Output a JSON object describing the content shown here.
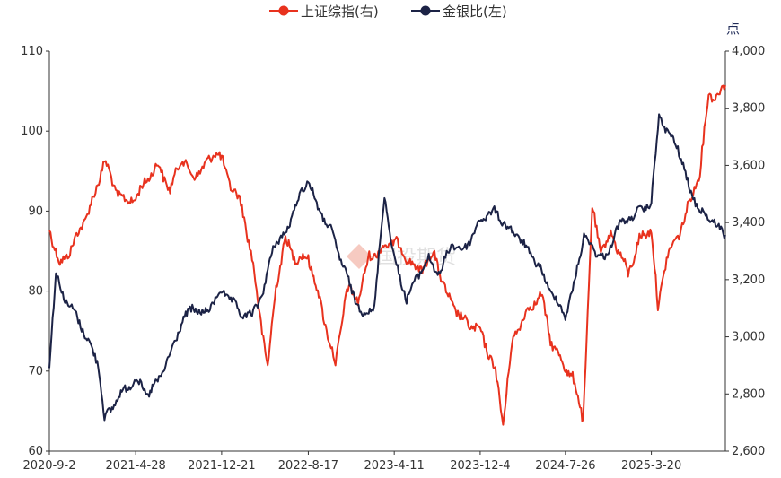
{
  "chart_data": {
    "type": "line",
    "legend": [
      {
        "label": "上证综指(右)",
        "color": "#e8321e"
      },
      {
        "label": "金银比(左)",
        "color": "#1c2346"
      }
    ],
    "legend_position": "top-center",
    "right_unit": "点",
    "watermark": "国投期货",
    "x_ticks": [
      "2020-9-2",
      "2021-4-28",
      "2021-12-21",
      "2022-8-17",
      "2023-4-11",
      "2023-12-4",
      "2024-7-26",
      "2025-3-20"
    ],
    "y_left": {
      "min": 60,
      "max": 110,
      "ticks": [
        60,
        70,
        80,
        90,
        100,
        110
      ]
    },
    "y_right": {
      "min": 2600,
      "max": 4000,
      "ticks": [
        "2,600",
        "2,800",
        "3,000",
        "3,200",
        "3,400",
        "3,600",
        "3,800",
        "4,000"
      ],
      "tick_values": [
        2600,
        2800,
        3000,
        3200,
        3400,
        3600,
        3800,
        4000
      ]
    },
    "grid": false,
    "x_range": [
      "2020-09-02",
      "2025-10-10"
    ],
    "series": [
      {
        "name": "上证综指(右)",
        "axis": "right",
        "color": "#e8321e",
        "points": [
          [
            "2020-09-02",
            3380
          ],
          [
            "2020-10-01",
            3250
          ],
          [
            "2020-11-01",
            3310
          ],
          [
            "2020-12-01",
            3390
          ],
          [
            "2021-01-01",
            3480
          ],
          [
            "2021-02-01",
            3620
          ],
          [
            "2021-03-01",
            3520
          ],
          [
            "2021-04-01",
            3470
          ],
          [
            "2021-05-01",
            3490
          ],
          [
            "2021-06-01",
            3560
          ],
          [
            "2021-07-01",
            3600
          ],
          [
            "2021-08-01",
            3510
          ],
          [
            "2021-09-01",
            3630
          ],
          [
            "2021-10-01",
            3560
          ],
          [
            "2021-11-01",
            3590
          ],
          [
            "2021-12-01",
            3650
          ],
          [
            "2021-12-21",
            3620
          ],
          [
            "2022-01-15",
            3530
          ],
          [
            "2022-02-15",
            3460
          ],
          [
            "2022-03-15",
            3270
          ],
          [
            "2022-04-27",
            2890
          ],
          [
            "2022-05-20",
            3180
          ],
          [
            "2022-06-15",
            3340
          ],
          [
            "2022-07-15",
            3270
          ],
          [
            "2022-08-17",
            3280
          ],
          [
            "2022-09-15",
            3140
          ],
          [
            "2022-10-31",
            2900
          ],
          [
            "2022-12-01",
            3170
          ],
          [
            "2023-01-01",
            3130
          ],
          [
            "2023-02-01",
            3280
          ],
          [
            "2023-03-01",
            3300
          ],
          [
            "2023-04-11",
            3340
          ],
          [
            "2023-05-15",
            3280
          ],
          [
            "2023-06-15",
            3230
          ],
          [
            "2023-07-31",
            3290
          ],
          [
            "2023-09-01",
            3150
          ],
          [
            "2023-10-15",
            3060
          ],
          [
            "2023-12-04",
            3020
          ],
          [
            "2024-01-15",
            2880
          ],
          [
            "2024-02-05",
            2700
          ],
          [
            "2024-03-01",
            2980
          ],
          [
            "2024-04-01",
            3070
          ],
          [
            "2024-05-20",
            3150
          ],
          [
            "2024-06-15",
            2990
          ],
          [
            "2024-07-26",
            2890
          ],
          [
            "2024-08-15",
            2860
          ],
          [
            "2024-09-13",
            2710
          ],
          [
            "2024-10-08",
            3450
          ],
          [
            "2024-11-01",
            3300
          ],
          [
            "2024-12-01",
            3360
          ],
          [
            "2025-01-15",
            3220
          ],
          [
            "2025-02-15",
            3340
          ],
          [
            "2025-03-20",
            3380
          ],
          [
            "2025-04-07",
            3100
          ],
          [
            "2025-05-01",
            3280
          ],
          [
            "2025-06-01",
            3350
          ],
          [
            "2025-07-01",
            3460
          ],
          [
            "2025-08-01",
            3580
          ],
          [
            "2025-08-25",
            3850
          ],
          [
            "2025-09-15",
            3840
          ],
          [
            "2025-10-10",
            3880
          ]
        ]
      },
      {
        "name": "金银比(左)",
        "axis": "left",
        "color": "#1c2346",
        "points": [
          [
            "2020-09-02",
            71
          ],
          [
            "2020-09-20",
            82
          ],
          [
            "2020-10-15",
            79
          ],
          [
            "2020-11-15",
            77
          ],
          [
            "2020-12-15",
            74
          ],
          [
            "2021-01-15",
            71
          ],
          [
            "2021-02-01",
            64
          ],
          [
            "2021-02-15",
            65
          ],
          [
            "2021-03-15",
            67
          ],
          [
            "2021-04-28",
            69
          ],
          [
            "2021-06-01",
            67
          ],
          [
            "2021-07-01",
            69
          ],
          [
            "2021-08-01",
            72
          ],
          [
            "2021-09-01",
            76
          ],
          [
            "2021-10-01",
            78
          ],
          [
            "2021-11-01",
            77
          ],
          [
            "2021-12-21",
            80
          ],
          [
            "2022-01-15",
            79
          ],
          [
            "2022-02-15",
            77
          ],
          [
            "2022-03-15",
            77
          ],
          [
            "2022-04-15",
            80
          ],
          [
            "2022-05-15",
            86
          ],
          [
            "2022-06-15",
            87
          ],
          [
            "2022-07-15",
            91
          ],
          [
            "2022-08-17",
            94
          ],
          [
            "2022-09-15",
            90
          ],
          [
            "2022-10-15",
            88
          ],
          [
            "2022-11-15",
            84
          ],
          [
            "2022-12-15",
            80
          ],
          [
            "2023-01-15",
            77
          ],
          [
            "2023-02-15",
            78
          ],
          [
            "2023-03-15",
            92
          ],
          [
            "2023-04-11",
            84
          ],
          [
            "2023-05-15",
            79
          ],
          [
            "2023-06-15",
            82
          ],
          [
            "2023-07-15",
            84
          ],
          [
            "2023-08-15",
            82
          ],
          [
            "2023-09-15",
            86
          ],
          [
            "2023-10-15",
            85
          ],
          [
            "2023-11-15",
            87
          ],
          [
            "2023-12-04",
            89
          ],
          [
            "2024-01-15",
            90
          ],
          [
            "2024-02-15",
            88
          ],
          [
            "2024-03-15",
            87
          ],
          [
            "2024-04-15",
            85
          ],
          [
            "2024-05-15",
            83
          ],
          [
            "2024-06-15",
            80
          ],
          [
            "2024-07-26",
            77
          ],
          [
            "2024-08-15",
            80
          ],
          [
            "2024-09-15",
            87
          ],
          [
            "2024-10-15",
            85
          ],
          [
            "2024-11-15",
            84
          ],
          [
            "2024-12-15",
            88
          ],
          [
            "2025-01-15",
            89
          ],
          [
            "2025-02-15",
            90
          ],
          [
            "2025-03-20",
            91
          ],
          [
            "2025-04-10",
            102
          ],
          [
            "2025-05-01",
            100
          ],
          [
            "2025-06-01",
            98
          ],
          [
            "2025-07-01",
            93
          ],
          [
            "2025-08-01",
            90
          ],
          [
            "2025-09-01",
            89
          ],
          [
            "2025-10-10",
            87
          ]
        ]
      }
    ]
  }
}
